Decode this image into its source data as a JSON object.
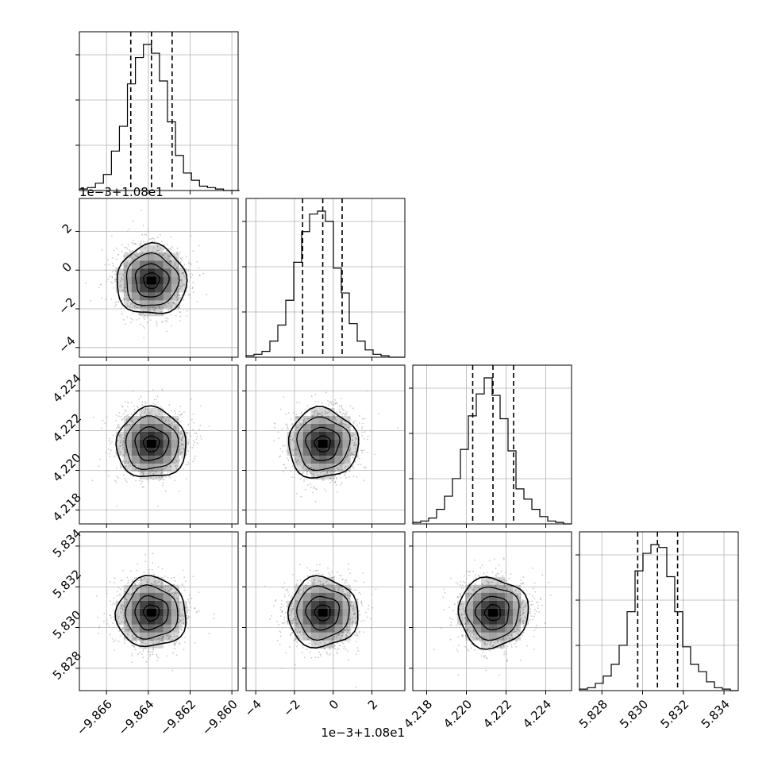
{
  "chart_data": {
    "type": "corner",
    "title": "",
    "parameters": [
      {
        "range": [
          -9.8673,
          -9.8597
        ],
        "x_ticks": [
          -9.866,
          -9.864,
          -9.862,
          -9.86
        ],
        "x_tick_labels": [
          "−9.866",
          "−9.864",
          "−9.862",
          "−9.860"
        ],
        "quantiles": [
          -9.86484,
          -9.86385,
          -9.86286
        ],
        "histogram": {
          "bin_start": -9.8673,
          "bin_width": 0.0003833,
          "counts": [
            1,
            2,
            5,
            11,
            27,
            44,
            73,
            91,
            100,
            94,
            75,
            47,
            24,
            12,
            7,
            3,
            2,
            1,
            0,
            0
          ]
        }
      },
      {
        "offset_label": "1e−3+1.08e1",
        "range": [
          -4.5,
          3.7
        ],
        "x_ticks": [
          -4,
          -2,
          0,
          2
        ],
        "x_tick_labels": [
          "−4",
          "−2",
          "0",
          "2"
        ],
        "y_ticks": [
          -4,
          -2,
          0,
          2
        ],
        "y_tick_labels": [
          "−4",
          "−2",
          "0",
          "2"
        ],
        "quantiles": [
          -1.58,
          -0.54,
          0.46
        ],
        "histogram": {
          "bin_start": -4.5,
          "bin_width": 0.41,
          "counts": [
            1,
            2,
            4,
            11,
            22,
            39,
            65,
            86,
            98,
            100,
            93,
            61,
            44,
            23,
            11,
            5,
            2,
            1,
            0,
            0
          ]
        }
      },
      {
        "range": [
          4.2173,
          4.2253
        ],
        "x_ticks": [
          4.218,
          4.22,
          4.222,
          4.224
        ],
        "x_tick_labels": [
          "4.218",
          "4.220",
          "4.222",
          "4.224"
        ],
        "y_ticks": [
          4.218,
          4.22,
          4.222,
          4.224
        ],
        "y_tick_labels": [
          "4.218",
          "4.220",
          "4.222",
          "4.224"
        ],
        "quantiles": [
          4.22032,
          4.22134,
          4.22238
        ],
        "histogram": {
          "bin_start": 4.2173,
          "bin_width": 0.0004,
          "counts": [
            1,
            2,
            4,
            10,
            19,
            31,
            51,
            74,
            89,
            100,
            88,
            72,
            50,
            24,
            17,
            10,
            5,
            2,
            1,
            0
          ]
        }
      },
      {
        "range": [
          5.8269,
          5.8347
        ],
        "x_ticks": [
          5.828,
          5.83,
          5.832,
          5.834
        ],
        "x_tick_labels": [
          "5.828",
          "5.830",
          "5.832",
          "5.834"
        ],
        "y_ticks": [
          5.828,
          5.83,
          5.832,
          5.834
        ],
        "y_tick_labels": [
          "5.828",
          "5.830",
          "5.832",
          "5.834"
        ],
        "quantiles": [
          5.82976,
          5.83073,
          5.83172
        ],
        "histogram": {
          "bin_start": 5.8269,
          "bin_width": 0.00039,
          "counts": [
            1,
            2,
            5,
            10,
            18,
            31,
            54,
            82,
            94,
            100,
            98,
            78,
            54,
            30,
            18,
            13,
            6,
            2,
            1,
            0
          ]
        }
      }
    ],
    "pair_density_centers": [
      {
        "row": 1,
        "col": 0,
        "x": -9.86385,
        "y": -0.54
      },
      {
        "row": 2,
        "col": 0,
        "x": -9.86385,
        "y": 4.22134
      },
      {
        "row": 2,
        "col": 1,
        "x": -0.54,
        "y": 4.22134
      },
      {
        "row": 3,
        "col": 0,
        "x": -9.86385,
        "y": 5.83073
      },
      {
        "row": 3,
        "col": 1,
        "x": -0.54,
        "y": 5.83073
      },
      {
        "row": 3,
        "col": 2,
        "x": 4.22134,
        "y": 5.83073
      }
    ],
    "grid": true,
    "legend": "none",
    "colors": {
      "contour": "#000000",
      "density": "#000000",
      "points": "#b0b0b0",
      "grid": "#b0b0b0"
    }
  }
}
